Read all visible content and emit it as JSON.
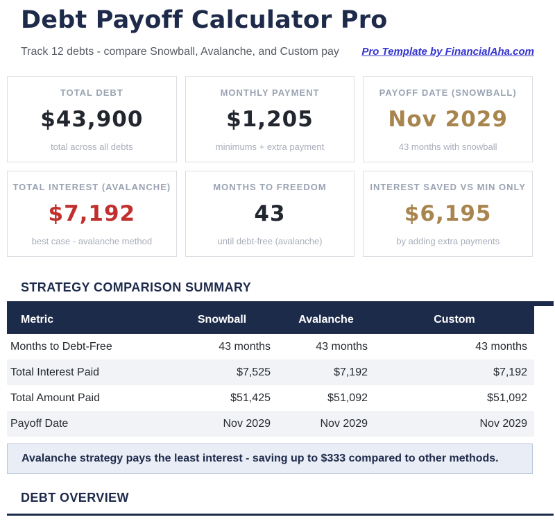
{
  "header": {
    "title": "Debt Payoff Calculator Pro",
    "subtitle": "Track 12 debts - compare Snowball, Avalanche, and Custom pay",
    "link_text": "Pro Template by FinancialAha.com"
  },
  "stat_cards": [
    {
      "label": "TOTAL DEBT",
      "value": "$43,900",
      "sub": "total across all debts",
      "value_color": "dark"
    },
    {
      "label": "MONTHLY PAYMENT",
      "value": "$1,205",
      "sub": "minimums + extra payment",
      "value_color": "dark"
    },
    {
      "label": "PAYOFF DATE (SNOWBALL)",
      "value": "Nov 2029",
      "sub": "43 months with snowball",
      "value_color": "gold"
    },
    {
      "label": "TOTAL INTEREST (AVALANCHE)",
      "value": "$7,192",
      "sub": "best case - avalanche method",
      "value_color": "red"
    },
    {
      "label": "MONTHS TO FREEDOM",
      "value": "43",
      "sub": "until debt-free (avalanche)",
      "value_color": "dark"
    },
    {
      "label": "INTEREST SAVED VS MIN ONLY",
      "value": "$6,195",
      "sub": "by adding extra payments",
      "value_color": "gold"
    }
  ],
  "comparison": {
    "heading": "STRATEGY COMPARISON SUMMARY",
    "columns": [
      "Metric",
      "Snowball",
      "Avalanche",
      "Custom"
    ],
    "rows": [
      {
        "metric": "Months to Debt-Free",
        "snowball": "43 months",
        "avalanche": "43 months",
        "custom": "43 months"
      },
      {
        "metric": "Total Interest Paid",
        "snowball": "$7,525",
        "avalanche": "$7,192",
        "custom": "$7,192"
      },
      {
        "metric": "Total Amount Paid",
        "snowball": "$51,425",
        "avalanche": "$51,092",
        "custom": "$51,092"
      },
      {
        "metric": "Payoff Date",
        "snowball": "Nov 2029",
        "avalanche": "Nov 2029",
        "custom": "Nov 2029"
      }
    ],
    "callout": "Avalanche strategy pays the least interest - saving up to $333 compared to other methods."
  },
  "debt_overview": {
    "heading": "DEBT OVERVIEW"
  },
  "colors": {
    "navy": "#1d2b4a",
    "title_navy": "#1e2a4a",
    "gold": "#a8854e",
    "red": "#c0302e",
    "link_blue": "#3434d0",
    "row_stripe": "#f1f3f6",
    "callout_bg": "#e9edf6",
    "callout_border": "#bac4da",
    "card_border": "#d9dde3",
    "label_gray": "#9aa3b2",
    "sub_gray": "#a8aeb9"
  }
}
